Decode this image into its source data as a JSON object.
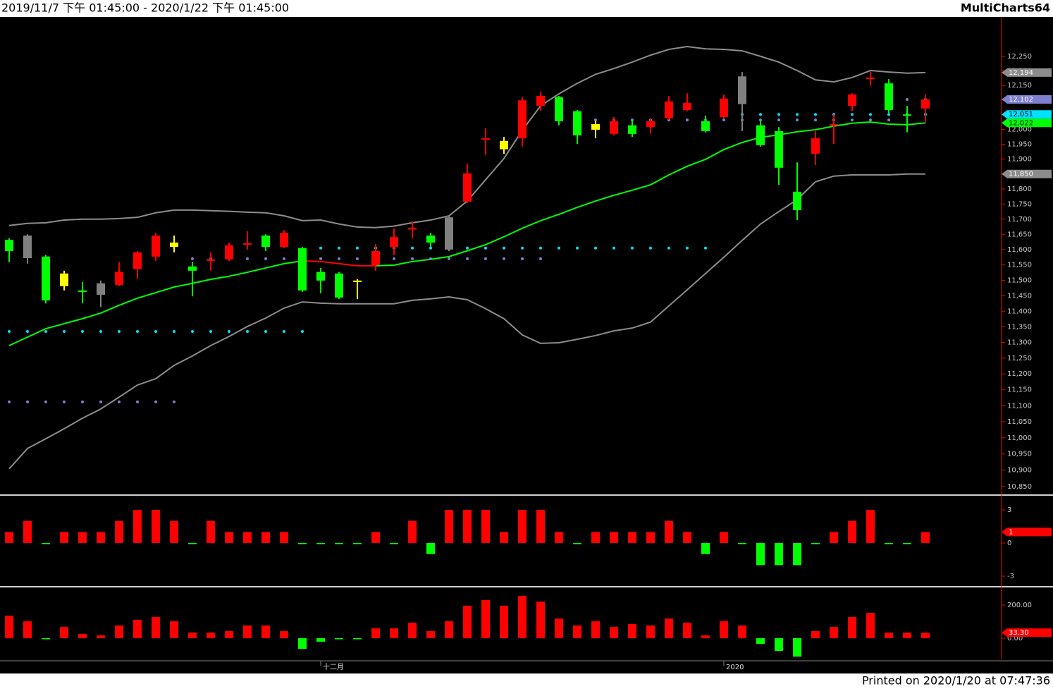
{
  "header": {
    "range": "2019/11/7 下午 01:45:00 - 2020/1/22 下午 01:45:00",
    "app": "MultiCharts64"
  },
  "footer": "Printed on 2020/1/20 at 07:47:36",
  "chart_data": [
    {
      "type": "candlestick",
      "log_scale": true,
      "grid": false,
      "categories": [
        null,
        null,
        null,
        null,
        null,
        null,
        null,
        null,
        null,
        null,
        null,
        null,
        null,
        null,
        null,
        null,
        null,
        "十二月",
        null,
        null,
        null,
        null,
        null,
        null,
        null,
        null,
        null,
        null,
        null,
        null,
        null,
        null,
        null,
        null,
        null,
        null,
        null,
        null,
        null,
        "2020",
        null,
        null,
        null,
        null,
        null,
        null,
        null,
        null,
        null,
        null,
        null
      ],
      "open": [
        11632,
        11646,
        11577,
        11522,
        11467,
        11490,
        11485,
        11536,
        11577,
        11623,
        11545,
        11563,
        11568,
        11616,
        11646,
        11609,
        11605,
        11527,
        11522,
        11499,
        11549,
        11609,
        11666,
        11646,
        11600,
        11758,
        11966,
        11961,
        11970,
        12080,
        12110,
        12062,
        12018,
        11985,
        12014,
        12008,
        12038,
        12066,
        12028,
        12042,
        12086,
        12014,
        11994,
        11791,
        11918,
        12014,
        12080,
        12172,
        12157,
        12051,
        12071
      ],
      "high": [
        11637,
        11650,
        11582,
        11531,
        11494,
        11499,
        11559,
        11595,
        11655,
        11646,
        11559,
        11591,
        11623,
        11660,
        11650,
        11664,
        11609,
        11540,
        11527,
        11504,
        11618,
        11669,
        11693,
        11655,
        11711,
        11885,
        12004,
        11975,
        12110,
        12129,
        12114,
        12066,
        12028,
        12042,
        12032,
        12038,
        12114,
        12123,
        12047,
        12119,
        12196,
        12032,
        12008,
        11889,
        11994,
        12051,
        12123,
        12196,
        12172,
        12080,
        12119
      ],
      "low": [
        11559,
        11554,
        11425,
        11467,
        11425,
        11413,
        11481,
        11504,
        11563,
        11591,
        11448,
        11531,
        11563,
        11600,
        11595,
        11605,
        11462,
        11458,
        11439,
        11439,
        11531,
        11582,
        11637,
        11609,
        11595,
        11753,
        11913,
        11918,
        11942,
        12062,
        12014,
        11951,
        11970,
        11980,
        11975,
        11985,
        12032,
        12062,
        11990,
        12038,
        11994,
        11942,
        11814,
        11697,
        11880,
        11951,
        12062,
        12148,
        12056,
        11990,
        12023
      ],
      "close": [
        11595,
        11572,
        11435,
        11481,
        11462,
        11453,
        11527,
        11591,
        11646,
        11609,
        11531,
        11568,
        11614,
        11621,
        11609,
        11655,
        11467,
        11499,
        11444,
        11494,
        11595,
        11641,
        11671,
        11623,
        11706,
        11852,
        11970,
        11933,
        12099,
        12114,
        12028,
        11980,
        11999,
        12028,
        11985,
        12028,
        12095,
        12090,
        11994,
        12105,
        12181,
        11947,
        11871,
        11730,
        11970,
        12018,
        12119,
        12177,
        12066,
        12047,
        12102
      ],
      "candle_colors": [
        "#00ff00",
        "#808080",
        "#00ff00",
        "#ffff00",
        "#00ff00",
        "#808080",
        "#ff0000",
        "#ff0000",
        "#ff0000",
        "#ffff00",
        "#00ff00",
        "#ff0000",
        "#ff0000",
        "#ff0000",
        "#00ff00",
        "#ff0000",
        "#00ff00",
        "#00ff00",
        "#00ff00",
        "#ffff00",
        "#ff0000",
        "#ff0000",
        "#ff0000",
        "#00ff00",
        "#808080",
        "#ff0000",
        "#ff0000",
        "#ffff00",
        "#ff0000",
        "#ff0000",
        "#00ff00",
        "#00ff00",
        "#ffff00",
        "#ff0000",
        "#00ff00",
        "#ff0000",
        "#ff0000",
        "#ff0000",
        "#00ff00",
        "#ff0000",
        "#808080",
        "#00ff00",
        "#00ff00",
        "#00ff00",
        "#ff0000",
        "#ff0000",
        "#ff0000",
        "#ff0000",
        "#00ff00",
        "#00ff00",
        "#ff0000"
      ],
      "lines": [
        {
          "color": "#8c8c8c",
          "last_label": "12,194",
          "values": [
            11679,
            11686,
            11688,
            11697,
            11700,
            11700,
            11702,
            11706,
            11721,
            11730,
            11730,
            11728,
            11726,
            11723,
            11721,
            11711,
            11695,
            11697,
            11684,
            11674,
            11672,
            11677,
            11688,
            11697,
            11711,
            11760,
            11831,
            11902,
            11997,
            12080,
            12121,
            12157,
            12188,
            12208,
            12230,
            12254,
            12274,
            12284,
            12276,
            12274,
            12269,
            12250,
            12230,
            12201,
            12169,
            12162,
            12177,
            12201,
            12196,
            12192,
            12194
          ]
        },
        {
          "color": "#8c8c8c",
          "last_label": "11,850",
          "values": [
            10904,
            10967,
            10997,
            11028,
            11061,
            11090,
            11127,
            11165,
            11185,
            11227,
            11257,
            11290,
            11319,
            11351,
            11378,
            11410,
            11430,
            11426,
            11424,
            11424,
            11424,
            11424,
            11435,
            11440,
            11446,
            11437,
            11408,
            11376,
            11324,
            11297,
            11299,
            11310,
            11322,
            11337,
            11346,
            11365,
            11417,
            11469,
            11522,
            11575,
            11630,
            11684,
            11725,
            11765,
            11824,
            11843,
            11847,
            11847,
            11847,
            11850,
            11850
          ]
        },
        {
          "color": "#ff0000",
          "last_label": "12,022",
          "values": [
            11290,
            11317,
            11344,
            11360,
            11376,
            11394,
            11419,
            11442,
            11460,
            11478,
            11490,
            11503,
            11513,
            11526,
            11540,
            11554,
            11563,
            11561,
            11554,
            11547,
            11547,
            11549,
            11561,
            11568,
            11577,
            11596,
            11616,
            11642,
            11670,
            11695,
            11716,
            11739,
            11760,
            11779,
            11796,
            11814,
            11847,
            11876,
            11899,
            11932,
            11956,
            11973,
            11982,
            11992,
            11999,
            12011,
            12021,
            12025,
            12018,
            12016,
            12022
          ],
          "colors": [
            "#ff0000",
            "#ff0000",
            "#ff0000",
            "#ff0000",
            "#ff0000",
            "#ff0000",
            "#ff0000",
            "#ff0000",
            "#ff0000",
            "#ff0000",
            "#ff0000",
            "#ff0000",
            "#ff0000",
            "#ff0000",
            "#ff0000",
            "#ff0000",
            "#ff0000",
            "#00ff00",
            "#00ff00",
            "#00ff00",
            "#00ff00",
            "#ff0000",
            "#ff0000",
            "#ff0000",
            "#ff0000",
            "#ff0000",
            "#ff0000",
            "#ff0000",
            "#ff0000",
            "#ff0000",
            "#ff0000",
            "#ff0000",
            "#ff0000",
            "#ff0000",
            "#ff0000",
            "#ff0000",
            "#ff0000",
            "#ff0000",
            "#ff0000",
            "#ff0000",
            "#ff0000",
            "#ff0000",
            "#ff0000",
            "#ff0000",
            "#ff0000",
            "#ff0000",
            "#ff0000",
            "#ff0000",
            "#00ff00",
            "#00ff00",
            "#00ff00"
          ]
        }
      ],
      "dots": [
        {
          "color": "#8080d0",
          "last_label": "12,102",
          "values": [
            11112,
            11112,
            11112,
            11112,
            11112,
            11112,
            11112,
            11112,
            11112,
            11112,
            11570,
            11570,
            11570,
            11570,
            11570,
            11570,
            11570,
            11570,
            11570,
            11570,
            11570,
            11570,
            11570,
            11570,
            11570,
            11570,
            11570,
            11570,
            11570,
            11570,
            12032,
            12032,
            12032,
            12032,
            12032,
            12032,
            12032,
            12032,
            12032,
            12032,
            12032,
            12032,
            12032,
            12032,
            12032,
            12032,
            12032,
            12032,
            12032,
            12102,
            12102
          ]
        },
        {
          "color": "#00e0ff",
          "last_label": "12,051",
          "values": [
            11335,
            11335,
            11335,
            11335,
            11335,
            11335,
            11335,
            11335,
            11335,
            11335,
            11335,
            11335,
            11335,
            11335,
            11335,
            11335,
            11335,
            11605,
            11605,
            11605,
            11605,
            11605,
            11605,
            11605,
            11605,
            11605,
            11605,
            11605,
            11605,
            11605,
            11605,
            11605,
            11605,
            11605,
            11605,
            11605,
            11605,
            11605,
            11605,
            12051,
            12051,
            12051,
            12051,
            12051,
            12051,
            12051,
            12051,
            12051,
            12051,
            12051,
            12051
          ]
        }
      ],
      "ylim": [
        10828,
        12387
      ],
      "yticks": [
        {
          "value": 10850,
          "label": "10,850"
        },
        {
          "value": 10900,
          "label": "10,900"
        },
        {
          "value": 10950,
          "label": "10,950"
        },
        {
          "value": 11000,
          "label": "11,000"
        },
        {
          "value": 11050,
          "label": "11,050"
        },
        {
          "value": 11100,
          "label": "11,100"
        },
        {
          "value": 11150,
          "label": "11,150"
        },
        {
          "value": 11200,
          "label": "11,200"
        },
        {
          "value": 11250,
          "label": "11,250"
        },
        {
          "value": 11300,
          "label": "11,300"
        },
        {
          "value": 11350,
          "label": "11,350"
        },
        {
          "value": 11400,
          "label": "11,400"
        },
        {
          "value": 11450,
          "label": "11,450"
        },
        {
          "value": 11500,
          "label": "11,500"
        },
        {
          "value": 11550,
          "label": "11,550"
        },
        {
          "value": 11600,
          "label": "11,600"
        },
        {
          "value": 11650,
          "label": "11,650"
        },
        {
          "value": 11700,
          "label": "11,700"
        },
        {
          "value": 11750,
          "label": "11,750"
        },
        {
          "value": 11800,
          "label": "11,800"
        },
        {
          "value": 11850,
          "label": "11,850"
        },
        {
          "value": 11900,
          "label": "11,900"
        },
        {
          "value": 11950,
          "label": "11,950"
        },
        {
          "value": 12000,
          "label": "12,000"
        },
        {
          "value": 12050,
          "label": "12,050"
        },
        {
          "value": 12100,
          "label": "12,100"
        },
        {
          "value": 12150,
          "label": "12,150"
        },
        {
          "value": 12200,
          "label": "12,200"
        },
        {
          "value": 12250,
          "label": "12,250"
        }
      ]
    },
    {
      "type": "bar",
      "up_color": "#ff0000",
      "down_color": "#00ff00",
      "last_color": "#ff0000",
      "values": [
        1,
        2,
        0,
        1,
        1,
        1,
        2,
        3,
        3,
        2,
        0,
        2,
        1,
        1,
        1,
        1,
        0,
        0,
        0,
        0,
        1,
        0,
        2,
        -1,
        3,
        3,
        3,
        1,
        3,
        3,
        1,
        0,
        1,
        1,
        1,
        1,
        2,
        1,
        -1,
        1,
        0,
        -2,
        -2,
        -2,
        0,
        1,
        2,
        3,
        0,
        0,
        1
      ],
      "ylim": [
        -3.83,
        4.15
      ],
      "yticks": [
        -3,
        0,
        3
      ]
    },
    {
      "type": "bar",
      "up_color": "#ff0000",
      "down_color": "#00ff00",
      "last_color": "#ff0000",
      "last_label": "33.30",
      "values": [
        136,
        102,
        -2,
        68,
        26,
        17,
        77,
        111,
        128,
        102,
        34,
        34,
        43,
        77,
        77,
        43,
        -64,
        -21,
        -4,
        -4,
        60,
        60,
        94,
        43,
        102,
        196,
        230,
        196,
        255,
        221,
        119,
        77,
        102,
        68,
        85,
        77,
        119,
        94,
        17,
        102,
        77,
        -34,
        -77,
        -111,
        43,
        68,
        128,
        153,
        34,
        34,
        33.3
      ],
      "ylim": [
        -128,
        298
      ],
      "yticks": [
        {
          "value": 0,
          "label": "0.00"
        },
        {
          "value": 200,
          "label": "200.00"
        }
      ]
    }
  ]
}
